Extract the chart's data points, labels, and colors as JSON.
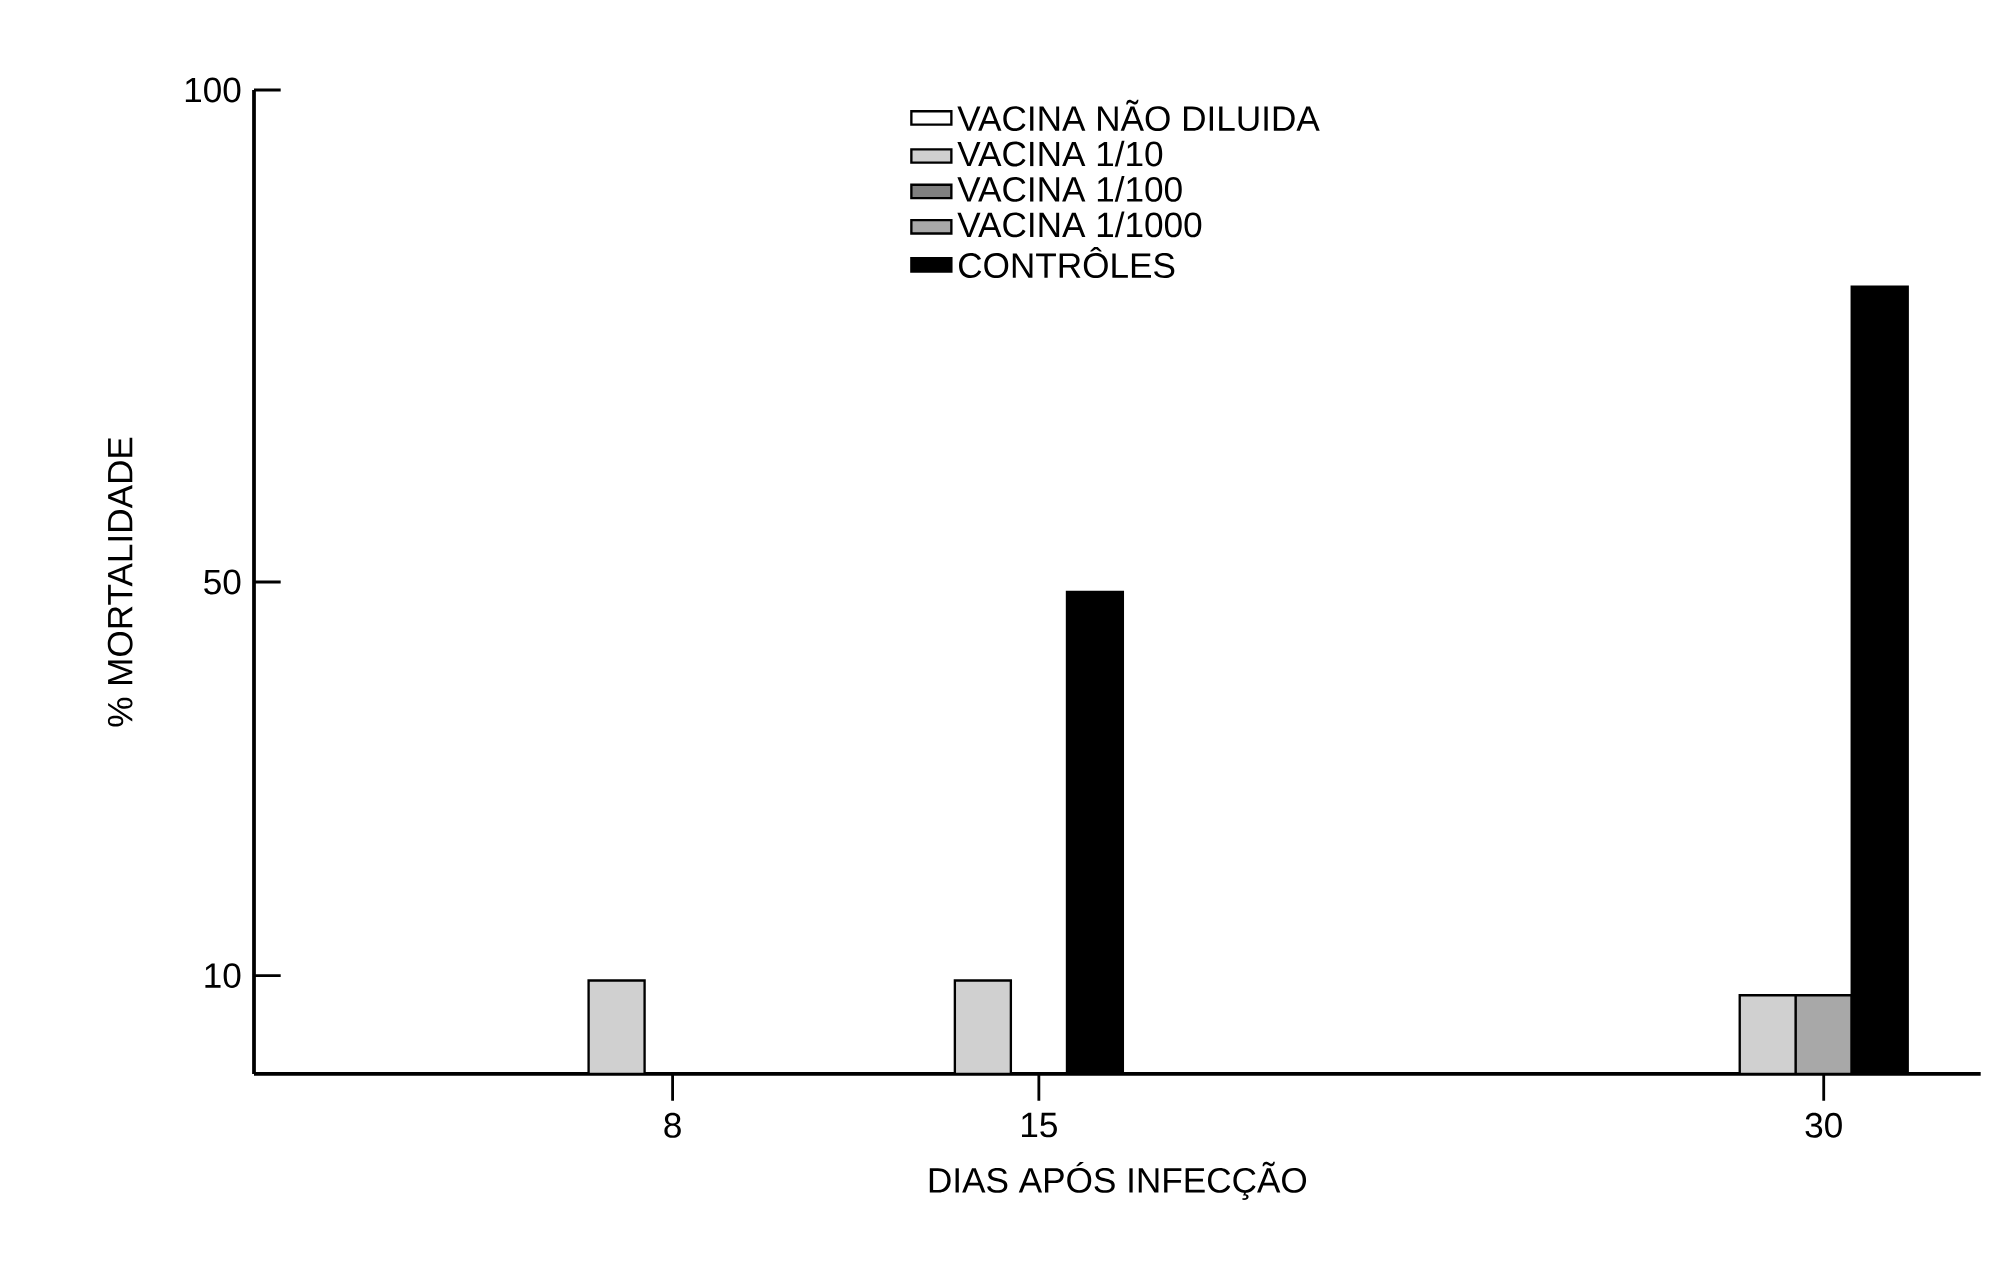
{
  "chart_data": {
    "type": "bar",
    "xlabel": "DIAS APÓS INFECÇÃO",
    "ylabel": "% MORTALIDADE",
    "x": [
      8,
      15,
      30
    ],
    "xlim": [
      0,
      33
    ],
    "xticks": [
      8,
      15,
      30
    ],
    "ylim": [
      0,
      100
    ],
    "yticks": [
      10,
      50,
      100
    ],
    "series": [
      {
        "name": "VACINA NÃO DILUIDA",
        "color": "#ffffff",
        "values": [
          null,
          null,
          null
        ]
      },
      {
        "name": "VACINA 1/10",
        "color": "#d0d0d0",
        "values": [
          9.5,
          9.5,
          8
        ]
      },
      {
        "name": "VACINA 1/100",
        "color": "#808080",
        "values": [
          null,
          null,
          null
        ]
      },
      {
        "name": "VACINA 1/1000",
        "color": "#a8a8a8",
        "values": [
          null,
          null,
          8
        ]
      },
      {
        "name": "CONTRÔLES",
        "color": "#000000",
        "values": [
          null,
          49,
          80
        ]
      }
    ],
    "legend": "top",
    "grid": false
  }
}
